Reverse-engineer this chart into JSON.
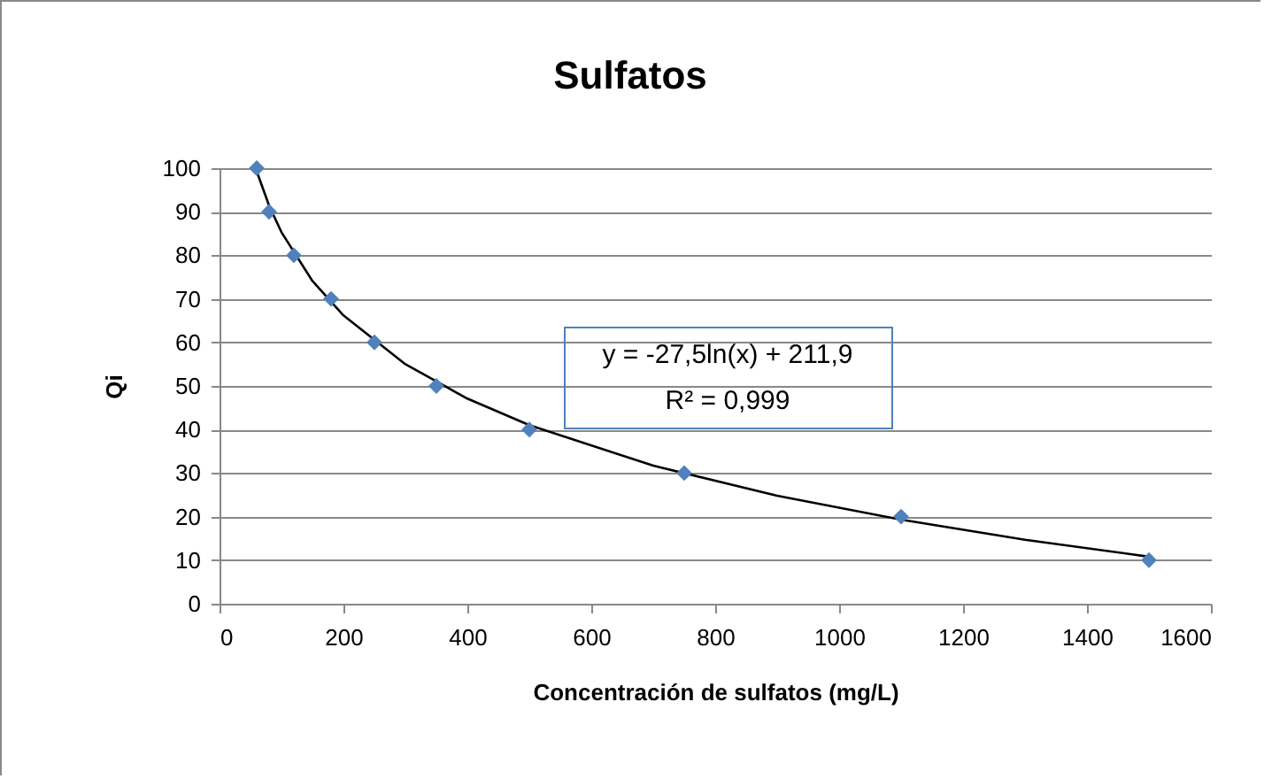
{
  "chart_data": {
    "type": "scatter",
    "title": "Sulfatos",
    "xlabel": "Concentración de sulfatos (mg/L)",
    "ylabel": "Qi",
    "x": [
      60,
      80,
      120,
      180,
      250,
      350,
      500,
      750,
      1100,
      1500
    ],
    "series": [
      {
        "type": "scatter",
        "color": "#4f81bd",
        "marker": "diamond",
        "values": [
          100,
          90,
          80,
          70,
          60,
          50,
          40,
          30,
          20,
          10
        ]
      },
      {
        "type": "line",
        "color": "#000000",
        "marker": "none",
        "x": [
          60,
          80,
          100,
          150,
          200,
          300,
          400,
          500,
          700,
          900,
          1100,
          1300,
          1500
        ],
        "values": [
          99.3,
          91.4,
          85.3,
          74.1,
          66.2,
          55.0,
          47.1,
          41.0,
          31.7,
          24.8,
          19.3,
          14.7,
          10.8
        ]
      }
    ],
    "xlim": [
      0,
      1600
    ],
    "xticks": [
      0,
      200,
      400,
      600,
      800,
      1000,
      1200,
      1400,
      1600
    ],
    "ylim": [
      0,
      100
    ],
    "yticks": [
      0,
      10,
      20,
      30,
      40,
      50,
      60,
      70,
      80,
      90,
      100
    ],
    "grid": "y",
    "annotations": [
      "y = -27,5ln(x) + 211,9",
      "R² = 0,999"
    ]
  }
}
